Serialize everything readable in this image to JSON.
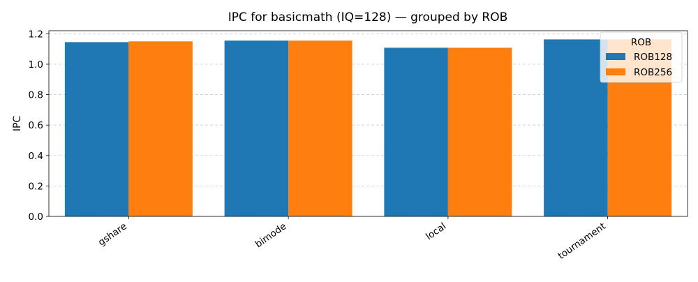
{
  "chart_data": {
    "type": "bar",
    "title": "IPC for basicmath (IQ=128) — grouped by ROB",
    "xlabel": "",
    "ylabel": "IPC",
    "categories": [
      "gshare",
      "bimode",
      "local",
      "tournament"
    ],
    "series": [
      {
        "name": "ROB128",
        "color": "#1f77b4",
        "values": [
          1.145,
          1.155,
          1.108,
          1.163
        ]
      },
      {
        "name": "ROB256",
        "color": "#ff7f0e",
        "values": [
          1.15,
          1.155,
          1.108,
          1.163
        ]
      }
    ],
    "ylim": [
      0,
      1.22
    ],
    "yticks": [
      "0.0",
      "0.2",
      "0.4",
      "0.6",
      "0.8",
      "1.0",
      "1.2"
    ],
    "grid": {
      "y": true,
      "style": "dashed"
    },
    "legend": {
      "title": "ROB",
      "placement": "top-right"
    }
  }
}
